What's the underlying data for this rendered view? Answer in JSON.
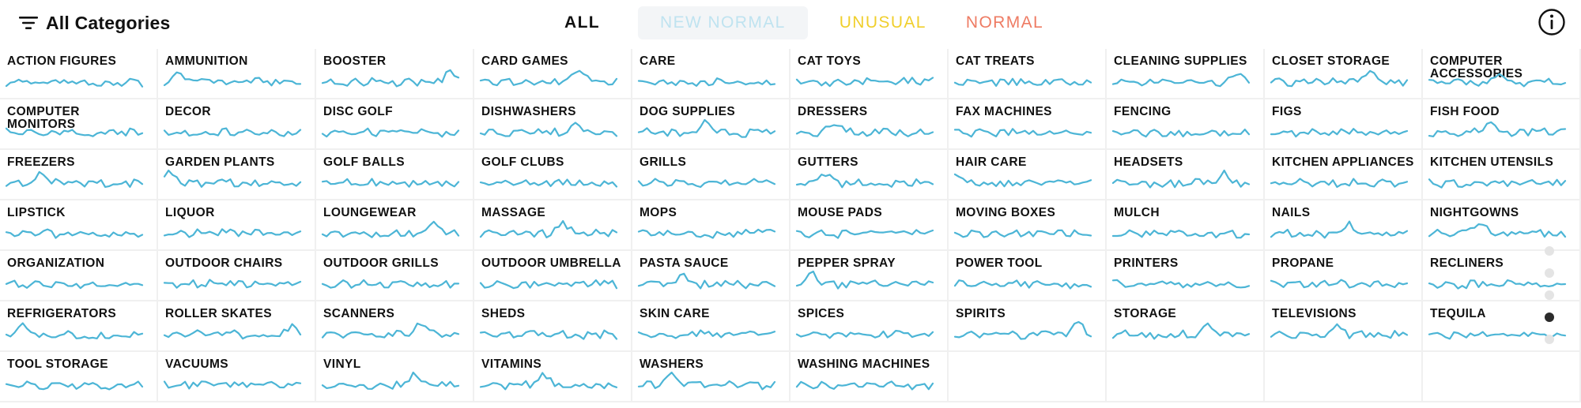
{
  "header": {
    "categories_label": "All Categories",
    "filters": {
      "all": "ALL",
      "new_normal": "NEW NORMAL",
      "unusual": "UNUSUAL",
      "normal": "NORMAL"
    },
    "colors": {
      "sparkline": "#4cb5d6",
      "new_normal": "#bfe3f0",
      "unusual": "#f0cf2c",
      "normal": "#ee7b63"
    },
    "info_icon": "info-icon",
    "filter_icon": "filter-lines-icon"
  },
  "categories": [
    "ACTION FIGURES",
    "AMMUNITION",
    "BOOSTER",
    "CARD GAMES",
    "CARE",
    "CAT TOYS",
    "CAT TREATS",
    "CLEANING SUPPLIES",
    "CLOSET STORAGE",
    "COMPUTER ACCESSORIES",
    "COMPUTER MONITORS",
    "DECOR",
    "DISC GOLF",
    "DISHWASHERS",
    "DOG SUPPLIES",
    "DRESSERS",
    "FAX MACHINES",
    "FENCING",
    "FIGS",
    "FISH FOOD",
    "FREEZERS",
    "GARDEN PLANTS",
    "GOLF BALLS",
    "GOLF CLUBS",
    "GRILLS",
    "GUTTERS",
    "HAIR CARE",
    "HEADSETS",
    "KITCHEN APPLIANCES",
    "KITCHEN UTENSILS",
    "LIPSTICK",
    "LIQUOR",
    "LOUNGEWEAR",
    "MASSAGE",
    "MOPS",
    "MOUSE PADS",
    "MOVING BOXES",
    "MULCH",
    "NAILS",
    "NIGHTGOWNS",
    "ORGANIZATION",
    "OUTDOOR CHAIRS",
    "OUTDOOR GRILLS",
    "OUTDOOR UMBRELLA",
    "PASTA SAUCE",
    "PEPPER SPRAY",
    "POWER TOOL",
    "PRINTERS",
    "PROPANE",
    "RECLINERS",
    "REFRIGERATORS",
    "ROLLER SKATES",
    "SCANNERS",
    "SHEDS",
    "SKIN CARE",
    "SPICES",
    "SPIRITS",
    "STORAGE",
    "TELEVISIONS",
    "TEQUILA",
    "TOOL STORAGE",
    "VACUUMS",
    "VINYL",
    "VITAMINS",
    "WASHERS",
    "WASHING MACHINES"
  ],
  "pagination": {
    "pages": 5,
    "active_index": 3
  }
}
